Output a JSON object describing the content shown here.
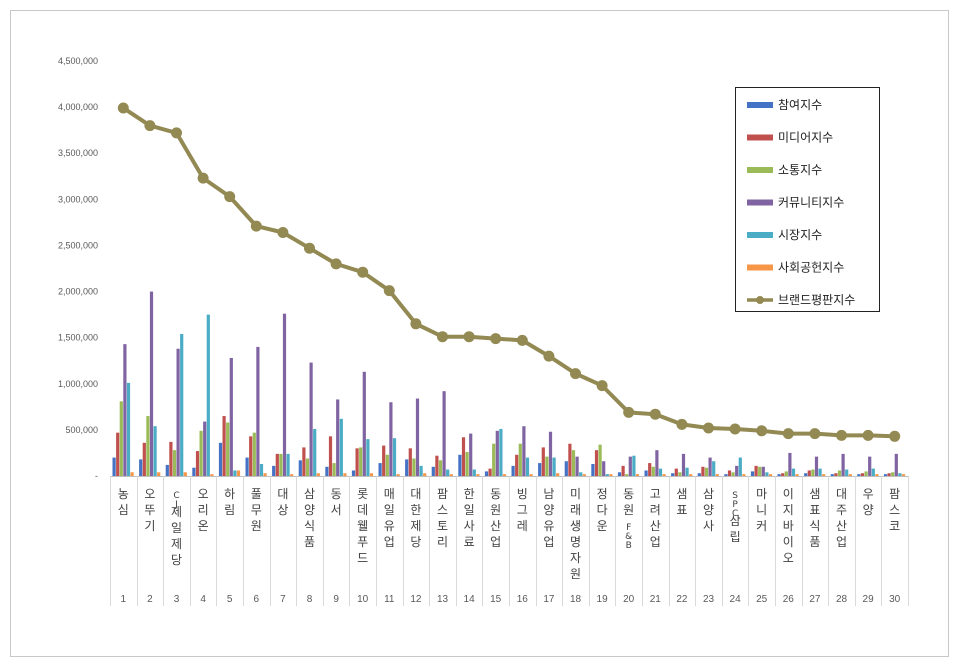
{
  "chart_data": {
    "type": "bar",
    "title": "",
    "xlabel": "",
    "ylabel": "",
    "ylim": [
      0,
      4500000
    ],
    "yticks": [
      "-",
      "500,000",
      "1,000,000",
      "1,500,000",
      "2,000,000",
      "2,500,000",
      "3,000,000",
      "3,500,000",
      "4,000,000",
      "4,500,000"
    ],
    "grid": false,
    "legend_position": "top-right",
    "ranks": [
      "1",
      "2",
      "3",
      "4",
      "5",
      "6",
      "7",
      "8",
      "9",
      "10",
      "11",
      "12",
      "13",
      "14",
      "15",
      "16",
      "17",
      "18",
      "19",
      "20",
      "21",
      "22",
      "23",
      "24",
      "25",
      "26",
      "27",
      "28",
      "29",
      "30"
    ],
    "categories": [
      "농심",
      "오뚜기",
      "CJ제일제당",
      "오리온",
      "하림",
      "풀무원",
      "대상",
      "삼양식품",
      "동서",
      "롯데웰푸드",
      "매일유업",
      "대한제당",
      "팜스토리",
      "한일사료",
      "동원산업",
      "빙그레",
      "남양유업",
      "미래생명자원",
      "정다운",
      "동원F&B",
      "고려산업",
      "샘표",
      "삼양사",
      "SPC삼립",
      "마니커",
      "이지바이오",
      "샘표식품",
      "대주산업",
      "우양",
      "팜스코"
    ],
    "series": [
      {
        "name": "참여지수",
        "type": "bar",
        "color": "#4472C4",
        "values": [
          200000,
          180000,
          120000,
          90000,
          360000,
          200000,
          110000,
          170000,
          100000,
          60000,
          140000,
          180000,
          100000,
          230000,
          50000,
          110000,
          140000,
          160000,
          130000,
          40000,
          60000,
          30000,
          30000,
          20000,
          50000,
          20000,
          30000,
          20000,
          20000,
          20000
        ]
      },
      {
        "name": "미디어지수",
        "type": "bar",
        "color": "#C0504D",
        "values": [
          470000,
          360000,
          370000,
          270000,
          650000,
          430000,
          240000,
          310000,
          430000,
          300000,
          330000,
          300000,
          220000,
          420000,
          80000,
          230000,
          310000,
          350000,
          280000,
          110000,
          140000,
          80000,
          100000,
          60000,
          110000,
          30000,
          60000,
          30000,
          30000,
          30000
        ]
      },
      {
        "name": "소통지수",
        "type": "bar",
        "color": "#9BBB59",
        "values": [
          810000,
          650000,
          280000,
          490000,
          580000,
          470000,
          240000,
          190000,
          140000,
          310000,
          230000,
          190000,
          170000,
          260000,
          350000,
          350000,
          210000,
          280000,
          340000,
          20000,
          100000,
          40000,
          90000,
          40000,
          100000,
          50000,
          70000,
          60000,
          50000,
          40000
        ]
      },
      {
        "name": "커뮤니티지수",
        "type": "bar",
        "color": "#8064A2",
        "values": [
          1430000,
          2000000,
          1380000,
          590000,
          1280000,
          1400000,
          1760000,
          1230000,
          830000,
          1130000,
          800000,
          840000,
          920000,
          460000,
          490000,
          540000,
          480000,
          210000,
          160000,
          210000,
          280000,
          240000,
          200000,
          110000,
          100000,
          250000,
          210000,
          240000,
          210000,
          240000
        ]
      },
      {
        "name": "시장지수",
        "type": "bar",
        "color": "#4BACC6",
        "values": [
          1010000,
          540000,
          1540000,
          1750000,
          60000,
          130000,
          240000,
          510000,
          620000,
          400000,
          410000,
          110000,
          70000,
          70000,
          510000,
          200000,
          200000,
          40000,
          20000,
          220000,
          80000,
          90000,
          160000,
          200000,
          40000,
          80000,
          80000,
          70000,
          80000,
          30000
        ]
      },
      {
        "name": "사회공헌지수",
        "type": "bar",
        "color": "#F79646",
        "values": [
          40000,
          40000,
          40000,
          20000,
          60000,
          30000,
          20000,
          30000,
          30000,
          30000,
          20000,
          30000,
          20000,
          20000,
          20000,
          20000,
          30000,
          20000,
          20000,
          20000,
          20000,
          20000,
          20000,
          20000,
          20000,
          20000,
          20000,
          20000,
          20000,
          20000
        ]
      },
      {
        "name": "브랜드평판지수",
        "type": "line",
        "color": "#938953",
        "values": [
          3990000,
          3800000,
          3720000,
          3230000,
          3030000,
          2710000,
          2640000,
          2470000,
          2300000,
          2210000,
          2010000,
          1650000,
          1510000,
          1510000,
          1490000,
          1470000,
          1300000,
          1110000,
          980000,
          690000,
          670000,
          560000,
          520000,
          510000,
          490000,
          460000,
          460000,
          440000,
          440000,
          430000
        ]
      }
    ]
  }
}
